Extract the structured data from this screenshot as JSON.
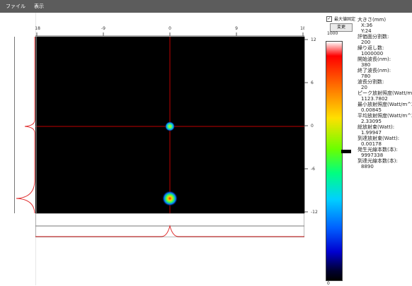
{
  "menu": {
    "file": "ファイル",
    "view": "表示"
  },
  "axes": {
    "top_ticks": [
      "-18",
      "-9",
      "0",
      "9",
      "18"
    ],
    "right_ticks": [
      "12",
      "6",
      "0",
      "-6",
      "-12"
    ]
  },
  "controls": {
    "checkbox_label": "最大値固定",
    "checkbox_checked": "✓",
    "change_button": "変更"
  },
  "colorbar": {
    "max_label": "1000",
    "min_label": "0"
  },
  "info": [
    {
      "label": "大きさ(mm)",
      "values": [
        "X:36",
        "Y:24"
      ]
    },
    {
      "label": "評価面分割数:",
      "values": [
        "200"
      ]
    },
    {
      "label": "繰り返し数:",
      "values": [
        "1000000"
      ]
    },
    {
      "label": "開始波長(nm):",
      "values": [
        "380"
      ]
    },
    {
      "label": "終了波長(nm):",
      "values": [
        "780"
      ]
    },
    {
      "label": "波長分割数:",
      "values": [
        "20"
      ]
    },
    {
      "label": "ピーク放射照度(Watt/m^2):",
      "values": [
        "1123.7802"
      ]
    },
    {
      "label": "最小放射照度(Watt/m^2):",
      "values": [
        "0.00845"
      ]
    },
    {
      "label": "平均放射照度(Watt/m^2):",
      "values": [
        "2.33095"
      ]
    },
    {
      "label": "総放射束(Watt):",
      "values": [
        "1.99947"
      ]
    },
    {
      "label": "到達放射束(Watt):",
      "values": [
        "0.00178"
      ]
    },
    {
      "label": "発生光線本数(本):",
      "values": [
        "9997338"
      ]
    },
    {
      "label": "到達光線本数(本):",
      "values": [
        "8890"
      ]
    }
  ]
}
